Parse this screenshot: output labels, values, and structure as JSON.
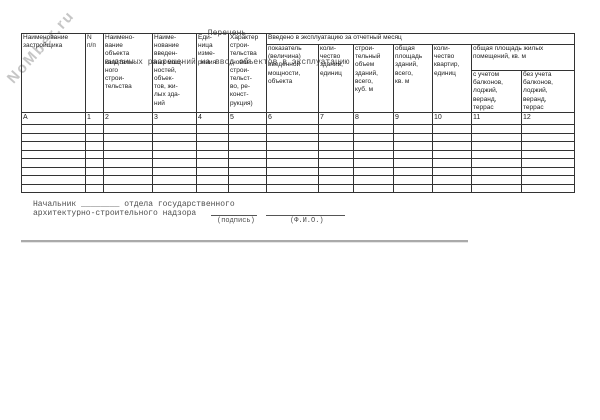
{
  "watermark": "NoMber.ru",
  "title": {
    "line1": "Перечень",
    "line2": "выданных разрешений на ввод объектов в эксплуатацию"
  },
  "table": {
    "group_header": "Введено в эксплуатацию за отчетный месяц",
    "living_area_group_header": "общая площадь жилых\nпомещений, кв. м",
    "columns": [
      "Наименование\nзастройщика",
      "N\nп/п",
      "Наимено-\nвание\nобъекта\nкапиталь-\nного\nстрои-\nтельства",
      "Наиме-\nнование\nвведен-\nных мощ-\nностей,\nобъек-\nтов, жи-\nлых зда-\nний",
      "Еди-\nница\nизме-\nрения",
      "Характер\nстрои-\nтельства\n(новое\nстрои-\nтельст-\nво, ре-\nконст-\nрукция)",
      "показатель\n(величина)\nвведенной\nмощности,\nобъекта",
      "коли-\nчество\nзданий,\nединиц",
      "строи-\nтельный\nобъем\nзданий,\nвсего,\nкуб. м",
      "общая\nплощадь\nзданий,\nвсего,\nкв. м",
      "коли-\nчество\nквартир,\nединиц",
      "с учетом\nбалконов,\nлоджий,\nверанд,\nтеррас",
      "без учета\nбалконов,\nлоджий,\nверанд,\nтеррас"
    ],
    "numbering": [
      "А",
      "1",
      "2",
      "3",
      "4",
      "5",
      "6",
      "7",
      "8",
      "9",
      "10",
      "11",
      "12"
    ],
    "empty_row_count": 8
  },
  "footer": {
    "head_line1": "Начальник ________ отдела государственного",
    "head_line2": "архитектурно-строительного надзора",
    "signature_label": "(подпись)",
    "fio_label": "(Ф.И.О.)"
  },
  "colors": {
    "border": "#333333",
    "text": "#1d1d1d",
    "muted_text": "#4d4d4d",
    "watermark": "#c6c6c6",
    "rule": "#aaaaaa"
  }
}
